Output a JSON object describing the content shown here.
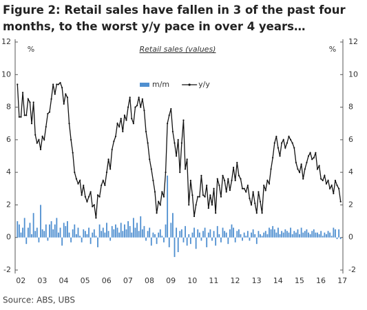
{
  "chart_data": {
    "type": "bar-line",
    "title_lines": [
      "Figure 2: Retail sales have fallen in 3 of the past four",
      "months, to the worst y/y pace in over 4 years…"
    ],
    "subtitle": "Retail sales (values)",
    "y_unit": "%",
    "source": "Source: ABS, UBS",
    "ylim": [
      -2,
      12
    ],
    "yticks": [
      -2,
      0,
      2,
      4,
      6,
      8,
      10,
      12
    ],
    "categories": [
      "02",
      null,
      null,
      null,
      null,
      null,
      null,
      null,
      null,
      null,
      null,
      null,
      "03",
      null,
      null,
      null,
      null,
      null,
      null,
      null,
      null,
      null,
      null,
      null,
      "04",
      null,
      null,
      null,
      null,
      null,
      null,
      null,
      null,
      null,
      null,
      null,
      "05",
      null,
      null,
      null,
      null,
      null,
      null,
      null,
      null,
      null,
      null,
      null,
      "06",
      null,
      null,
      null,
      null,
      null,
      null,
      null,
      null,
      null,
      null,
      null,
      "07",
      null,
      null,
      null,
      null,
      null,
      null,
      null,
      null,
      null,
      null,
      null,
      "08",
      null,
      null,
      null,
      null,
      null,
      null,
      null,
      null,
      null,
      null,
      null,
      "09",
      null,
      null,
      null,
      null,
      null,
      null,
      null,
      null,
      null,
      null,
      null,
      "10",
      null,
      null,
      null,
      null,
      null,
      null,
      null,
      null,
      null,
      null,
      null,
      "11",
      null,
      null,
      null,
      null,
      null,
      null,
      null,
      null,
      null,
      null,
      null,
      "12",
      null,
      null,
      null,
      null,
      null,
      null,
      null,
      null,
      null,
      null,
      null,
      "13",
      null,
      null,
      null,
      null,
      null,
      null,
      null,
      null,
      null,
      null,
      null,
      "14",
      null,
      null,
      null,
      null,
      null,
      null,
      null,
      null,
      null,
      null,
      null,
      "15",
      null,
      null,
      null,
      null,
      null,
      null,
      null,
      null,
      null,
      null,
      null,
      "16",
      null,
      null,
      null,
      null,
      null,
      null,
      null,
      null,
      null,
      null,
      null,
      "17",
      null
    ],
    "legend": "top",
    "series": [
      {
        "name": "m/m",
        "kind": "bar",
        "color": "#4f8fd0",
        "values": [
          1.0,
          0.8,
          0.3,
          0.6,
          1.2,
          -0.4,
          0.6,
          0.9,
          0.2,
          1.5,
          0.4,
          0.6,
          -0.3,
          2.0,
          0.5,
          0.4,
          0.8,
          -0.2,
          0.8,
          1.0,
          0.5,
          0.8,
          1.2,
          0.3,
          0.6,
          -0.5,
          0.9,
          0.7,
          1.0,
          0.3,
          -0.3,
          0.5,
          0.8,
          0.2,
          0.6,
          0.1,
          -0.3,
          0.5,
          0.4,
          0.2,
          0.6,
          -0.4,
          0.3,
          0.5,
          0.1,
          -0.6,
          0.8,
          0.4,
          0.6,
          0.3,
          0.9,
          0.4,
          -0.2,
          0.7,
          0.5,
          0.8,
          0.6,
          0.3,
          0.9,
          0.4,
          0.8,
          0.5,
          1.0,
          0.7,
          0.3,
          1.2,
          0.6,
          0.9,
          0.4,
          1.3,
          0.5,
          0.7,
          -0.2,
          0.4,
          0.6,
          -0.5,
          0.3,
          0.2,
          -0.4,
          0.3,
          0.5,
          0.1,
          -0.3,
          0.8,
          3.8,
          -0.6,
          0.9,
          1.5,
          -1.2,
          0.6,
          -0.9,
          0.4,
          0.5,
          -0.3,
          0.7,
          -0.5,
          0.2,
          -0.4,
          0.3,
          0.6,
          -0.7,
          0.5,
          0.3,
          -0.2,
          0.4,
          0.6,
          -0.6,
          0.3,
          0.5,
          -0.2,
          0.4,
          -0.5,
          0.7,
          0.2,
          -0.3,
          0.6,
          0.4,
          0.3,
          -0.4,
          0.5,
          0.8,
          0.6,
          -0.3,
          0.4,
          0.5,
          0.2,
          -0.2,
          0.3,
          0.1,
          0.4,
          -0.2,
          0.3,
          0.5,
          0.2,
          -0.4,
          0.4,
          0.2,
          0.1,
          0.3,
          0.4,
          0.2,
          0.6,
          0.5,
          0.7,
          0.5,
          0.3,
          0.6,
          0.2,
          0.4,
          0.3,
          0.5,
          0.4,
          0.3,
          0.6,
          0.2,
          0.4,
          0.3,
          0.5,
          0.2,
          0.6,
          0.3,
          0.4,
          0.5,
          0.3,
          0.2,
          0.4,
          0.5,
          0.3,
          0.3,
          0.2,
          0.4,
          0.1,
          0.3,
          0.2,
          0.4,
          0.3,
          0.1,
          0.6,
          0.5,
          -0.1,
          0.5,
          -0.1
        ]
      },
      {
        "name": "y/y",
        "kind": "line",
        "color": "#111111",
        "values": [
          9.4,
          7.4,
          7.4,
          8.9,
          7.5,
          7.5,
          8.5,
          8.3,
          7.0,
          8.3,
          6.3,
          5.8,
          6.0,
          5.4,
          6.2,
          6.0,
          6.8,
          7.6,
          7.7,
          8.5,
          9.4,
          8.8,
          9.4,
          9.4,
          9.5,
          9.2,
          8.2,
          8.8,
          8.6,
          7.0,
          6.0,
          5.2,
          4.0,
          3.6,
          3.3,
          3.5,
          2.6,
          3.2,
          2.5,
          2.2,
          2.5,
          2.8,
          1.9,
          2.0,
          1.2,
          2.6,
          2.5,
          3.2,
          3.5,
          3.2,
          4.0,
          4.8,
          4.2,
          5.4,
          5.9,
          6.2,
          7.0,
          6.8,
          7.3,
          6.5,
          7.5,
          7.2,
          8.0,
          8.6,
          7.3,
          7.0,
          8.0,
          8.1,
          8.6,
          8.0,
          8.5,
          7.8,
          6.5,
          5.8,
          4.8,
          4.2,
          3.5,
          2.8,
          1.5,
          2.2,
          2.0,
          2.8,
          2.5,
          4.0,
          7.0,
          7.5,
          7.9,
          6.5,
          5.8,
          5.0,
          6.0,
          4.0,
          5.8,
          7.2,
          4.2,
          4.8,
          2.0,
          3.5,
          2.6,
          1.3,
          2.0,
          2.5,
          2.5,
          3.8,
          2.6,
          2.5,
          3.2,
          1.8,
          2.6,
          2.0,
          3.0,
          1.5,
          3.6,
          3.2,
          2.5,
          3.8,
          3.5,
          2.8,
          3.6,
          2.9,
          3.5,
          4.3,
          3.5,
          4.6,
          3.8,
          3.6,
          3.0,
          3.0,
          2.8,
          3.2,
          2.4,
          2.0,
          2.8,
          2.1,
          1.5,
          2.8,
          2.2,
          1.5,
          3.2,
          2.9,
          3.5,
          3.3,
          4.2,
          4.9,
          5.8,
          6.2,
          5.5,
          5.0,
          5.8,
          6.0,
          5.5,
          5.8,
          6.2,
          6.0,
          5.8,
          5.5,
          4.6,
          4.2,
          4.0,
          4.5,
          3.6,
          4.2,
          4.6,
          5.0,
          5.2,
          4.8,
          4.9,
          5.2,
          4.2,
          4.4,
          3.6,
          3.5,
          3.8,
          3.3,
          3.5,
          3.0,
          3.2,
          2.7,
          3.5,
          3.2,
          3.0,
          2.2
        ]
      }
    ]
  }
}
